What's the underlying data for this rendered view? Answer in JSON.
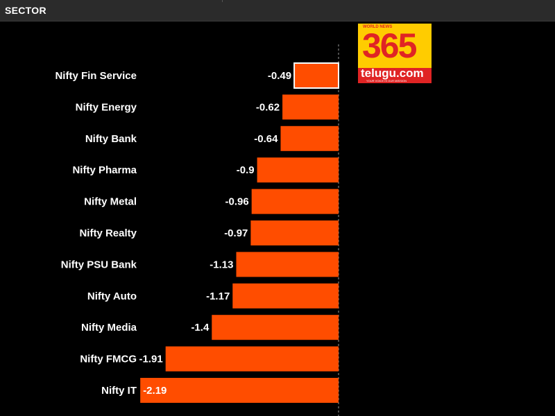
{
  "header": {
    "title": "SECTOR"
  },
  "logo": {
    "tagline": "WORLD NEWS",
    "number": "365",
    "word": "telugu.com",
    "subtitle": "YOUR VOICE IS OUR MISSION"
  },
  "colors": {
    "bar": "#ff4d00",
    "background": "#000000",
    "text": "#ffffff",
    "highlight_border": "#ffffff"
  },
  "chart_data": {
    "type": "bar",
    "orientation": "horizontal",
    "title": "",
    "xlabel": "",
    "ylabel": "",
    "categories": [
      "Nifty Fin Service",
      "Nifty Energy",
      "Nifty Bank",
      "Nifty Pharma",
      "Nifty Metal",
      "Nifty Realty",
      "Nifty PSU Bank",
      "Nifty Auto",
      "Nifty Media",
      "Nifty FMCG",
      "Nifty IT"
    ],
    "values": [
      -0.49,
      -0.62,
      -0.64,
      -0.9,
      -0.96,
      -0.97,
      -1.13,
      -1.17,
      -1.4,
      -1.91,
      -2.19
    ],
    "value_labels": [
      "-0.49",
      "-0.62",
      "-0.64",
      "-0.9",
      "-0.96",
      "-0.97",
      "-1.13",
      "-1.17",
      "-1.4",
      "-1.91",
      "-2.19"
    ],
    "highlighted_index": 0,
    "xlim": [
      -2.19,
      0
    ],
    "grid": false,
    "legend": "none"
  }
}
